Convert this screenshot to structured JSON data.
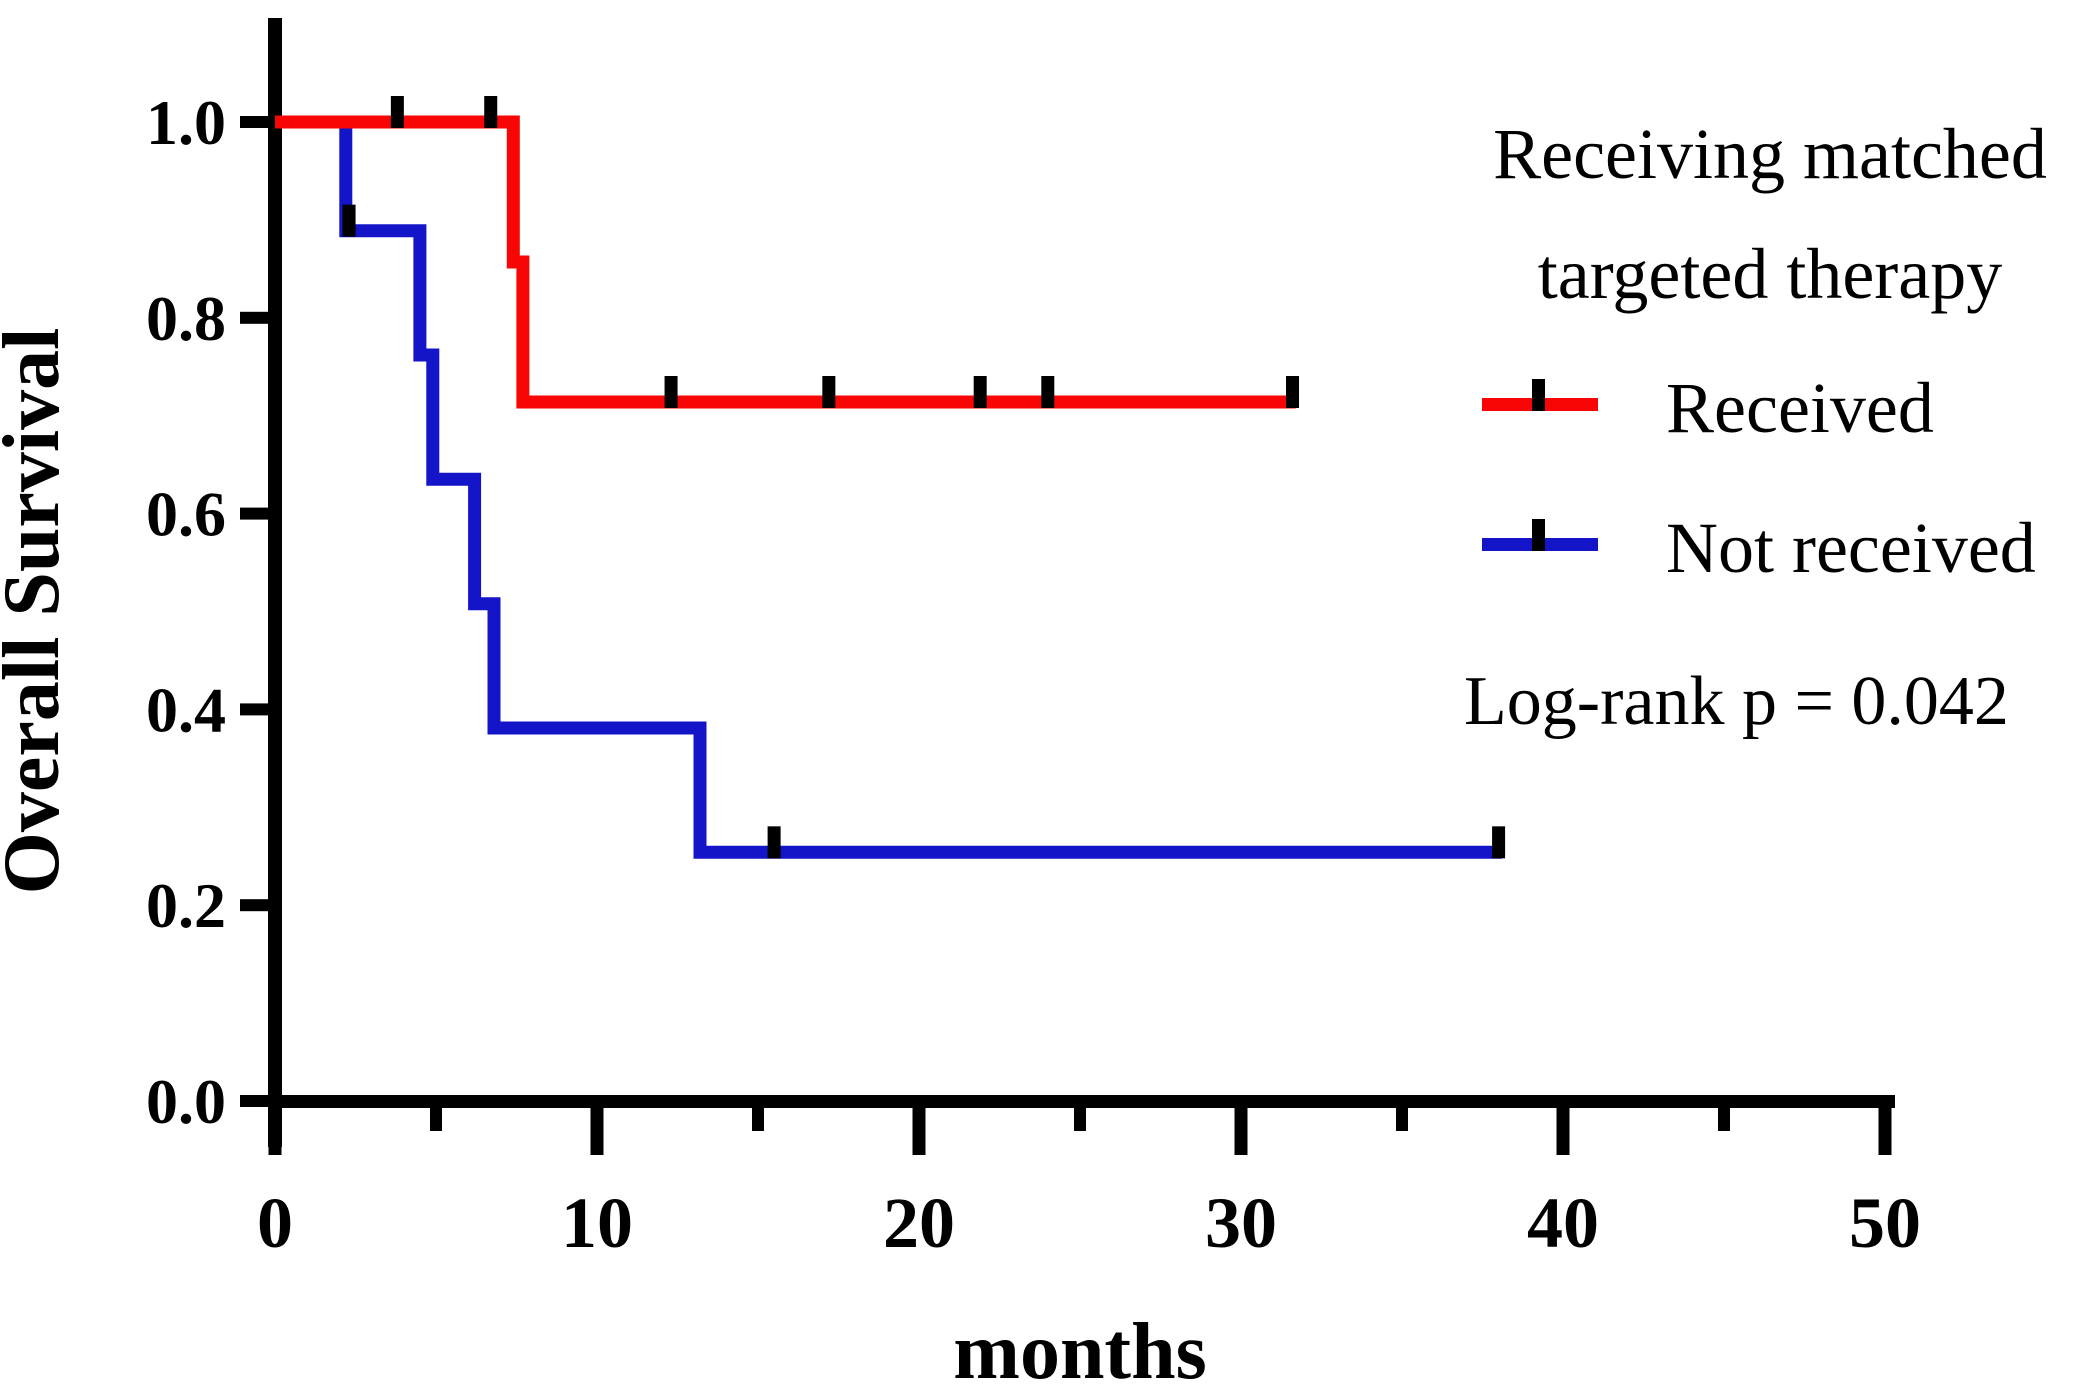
{
  "chart_data": {
    "type": "line",
    "subtype": "kaplan-meier-step",
    "title": "",
    "xlabel": "months",
    "ylabel": "Overall Survival",
    "xlim": [
      0,
      50.3
    ],
    "ylim": [
      0.0,
      1.0
    ],
    "grid": false,
    "legend_position": "upper-right-outside-plot",
    "xticks": {
      "major": [
        0,
        10,
        20,
        30,
        40,
        50
      ],
      "minor": [
        5,
        15,
        25,
        35,
        45
      ]
    },
    "yticks": [
      {
        "label": "1.0",
        "value": 1.0
      },
      {
        "label": "0.8",
        "value": 0.8
      },
      {
        "label": "0.6",
        "value": 0.6
      },
      {
        "label": "0.4",
        "value": 0.4
      },
      {
        "label": "0.2",
        "value": 0.2
      },
      {
        "label": "0.0",
        "value": 0.0
      }
    ],
    "series": [
      {
        "name": "Not received",
        "color": "#1414c8",
        "step_points": [
          [
            0,
            1.0
          ],
          [
            2.2,
            1.0
          ],
          [
            2.2,
            0.889
          ],
          [
            4.5,
            0.889
          ],
          [
            4.5,
            0.762
          ],
          [
            4.9,
            0.762
          ],
          [
            4.9,
            0.635
          ],
          [
            6.2,
            0.635
          ],
          [
            6.2,
            0.508
          ],
          [
            6.8,
            0.508
          ],
          [
            6.8,
            0.381
          ],
          [
            13.2,
            0.381
          ],
          [
            13.2,
            0.254
          ],
          [
            38.1,
            0.254
          ]
        ],
        "censors": [
          [
            2.3,
            0.889
          ],
          [
            15.5,
            0.254
          ],
          [
            38.0,
            0.254
          ]
        ]
      },
      {
        "name": "Received",
        "color": "#f80606",
        "step_points": [
          [
            0,
            1.0
          ],
          [
            7.4,
            1.0
          ],
          [
            7.4,
            0.857
          ],
          [
            7.7,
            0.857
          ],
          [
            7.7,
            0.714
          ],
          [
            31.7,
            0.714
          ]
        ],
        "censors": [
          [
            3.8,
            1.0
          ],
          [
            6.7,
            1.0
          ],
          [
            12.3,
            0.714
          ],
          [
            17.2,
            0.714
          ],
          [
            21.9,
            0.714
          ],
          [
            24.0,
            0.714
          ],
          [
            31.6,
            0.714
          ]
        ]
      }
    ],
    "annotation": "Log-rank p = 0.042",
    "legend": {
      "title_lines": [
        "Receiving matched",
        "targeted therapy"
      ],
      "entries": [
        {
          "label": "Received",
          "color": "#f80606"
        },
        {
          "label": "Not received",
          "color": "#1414c8"
        }
      ]
    },
    "axis_color": "#000000",
    "censor_color": "#000000",
    "background": "#ffffff"
  }
}
